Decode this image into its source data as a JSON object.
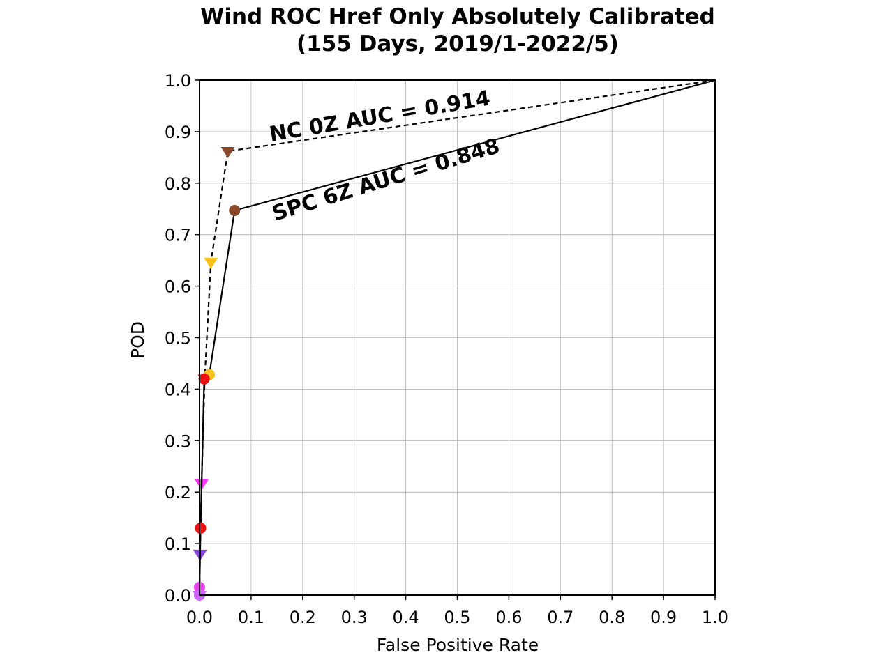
{
  "chart_data": {
    "type": "line",
    "title_lines": [
      "Wind ROC Href Only Absolutely Calibrated",
      "(155 Days, 2019/1-2022/5)"
    ],
    "xlabel": "False Positive Rate",
    "ylabel": "POD",
    "xlim": [
      0.0,
      1.0
    ],
    "ylim": [
      0.0,
      1.0
    ],
    "grid": true,
    "x_ticks": [
      "0.0",
      "0.1",
      "0.2",
      "0.3",
      "0.4",
      "0.5",
      "0.6",
      "0.7",
      "0.8",
      "0.9",
      "1.0"
    ],
    "y_ticks": [
      "0.0",
      "0.1",
      "0.2",
      "0.3",
      "0.4",
      "0.5",
      "0.6",
      "0.7",
      "0.8",
      "0.9",
      "1.0"
    ],
    "series": [
      {
        "style": "dashed",
        "marker": "triangle-down",
        "annotation": "NC 0Z AUC = 0.914",
        "points": [
          {
            "x": 1.0,
            "y": 1.0,
            "color": null
          },
          {
            "x": 0.055,
            "y": 0.862,
            "color": "#8b4a2b"
          },
          {
            "x": 0.022,
            "y": 0.647,
            "color": "#fcc21b"
          },
          {
            "x": 0.01,
            "y": 0.42,
            "color": "#ee1111"
          },
          {
            "x": 0.004,
            "y": 0.217,
            "color": "#ff33ff"
          },
          {
            "x": 0.001,
            "y": 0.08,
            "color": "#8844dd"
          },
          {
            "x": 0.0,
            "y": 0.0,
            "color": "#cc66ff"
          }
        ]
      },
      {
        "style": "solid",
        "marker": "circle",
        "annotation": "SPC 6Z AUC = 0.848",
        "points": [
          {
            "x": 1.0,
            "y": 1.0,
            "color": null
          },
          {
            "x": 0.068,
            "y": 0.747,
            "color": "#8b4a2b"
          },
          {
            "x": 0.019,
            "y": 0.428,
            "color": "#fcc21b"
          },
          {
            "x": 0.009,
            "y": 0.42,
            "color": "#ee1111"
          },
          {
            "x": 0.002,
            "y": 0.13,
            "color": "#ee1111"
          },
          {
            "x": 0.0,
            "y": 0.015,
            "color": "#ee44ee"
          },
          {
            "x": 0.0,
            "y": 0.0,
            "color": "#cc66ff"
          }
        ]
      }
    ]
  }
}
